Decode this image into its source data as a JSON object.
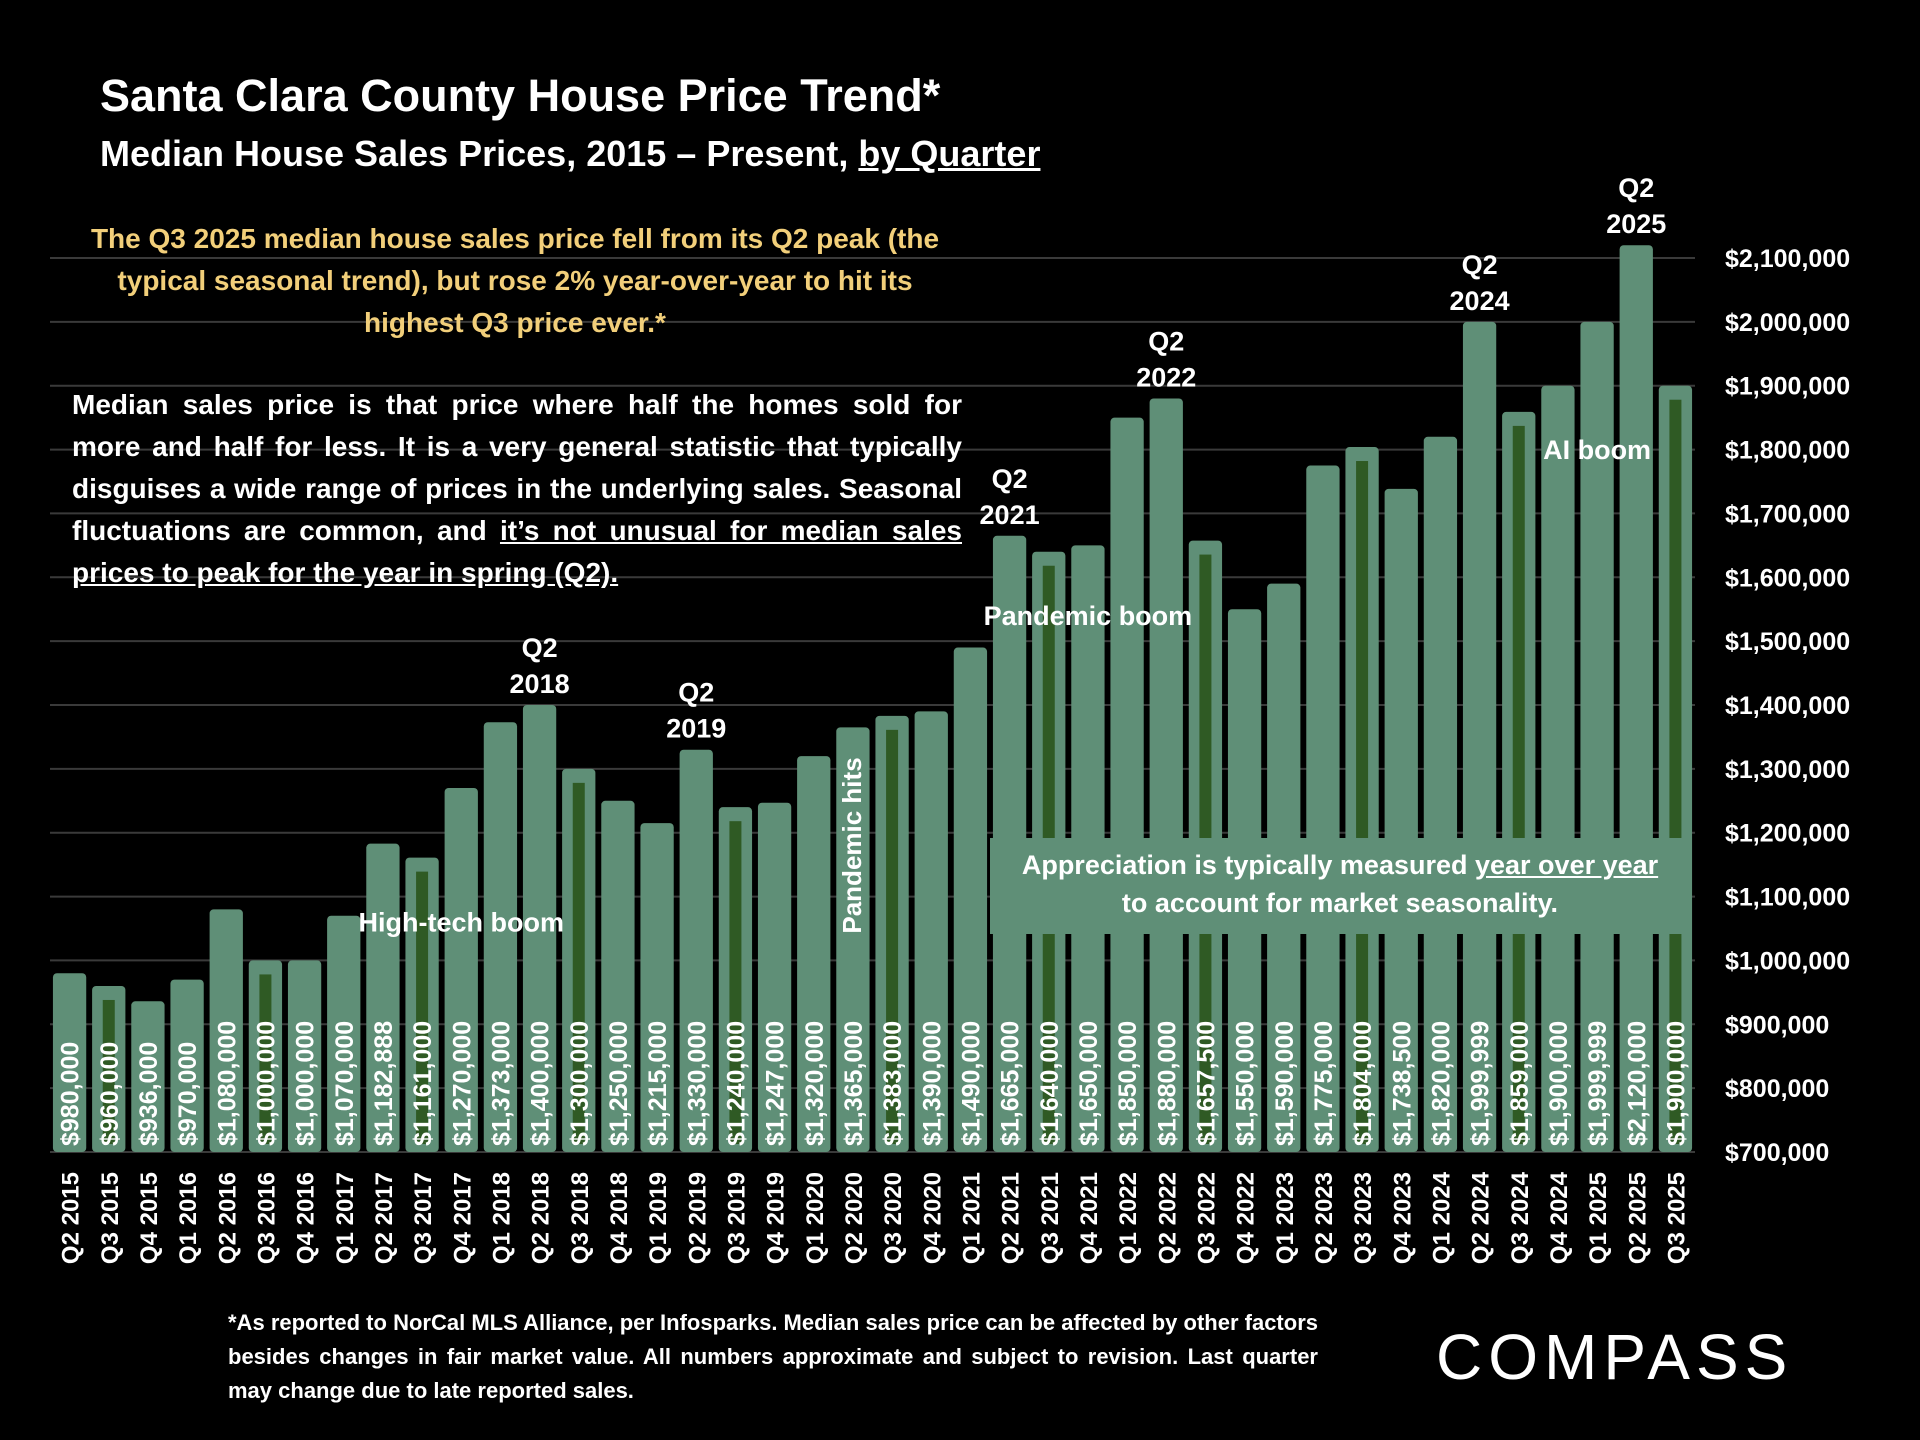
{
  "header": {
    "title": "Santa Clara County House Price Trend*",
    "subtitle_prefix": "Median House Sales Prices, 2015 – Present, ",
    "subtitle_link": "by Quarter"
  },
  "highlight": {
    "text": "The Q3 2025 median house sales price fell from its Q2 peak (the typical seasonal trend), but rose 2% year-over-year to hit its highest Q3 price ever.*"
  },
  "explanation": {
    "text": "Median sales price is that price where half the homes sold for more and half for less. It is a very general statistic that typically disguises a wide range of prices in the underlying sales. Seasonal fluctuations are common, and ",
    "underlined": "it’s not unusual for median sales prices to peak for the year in spring (Q2)."
  },
  "appreciation": {
    "prefix": "Appreciation is typically measured ",
    "underlined": "year over year",
    "suffix": "to account for market seasonality."
  },
  "footnote": "*As reported to NorCal MLS Alliance, per Infosparks. Median sales price can be affected by other factors besides changes in fair market value. All numbers approximate and subject to revision. Last quarter may change due to late reported sales.",
  "logo": "COMPASS",
  "colors": {
    "background": "#000000",
    "bar": "#5f8f77",
    "bar_inner": "#2f5a24",
    "gridline": "#3a3a3a",
    "highlight_text": "#f2cf7a",
    "text": "#ffffff"
  },
  "chart_data": {
    "type": "bar",
    "categories": [
      "Q2 2015",
      "Q3 2015",
      "Q4 2015",
      "Q1 2016",
      "Q2 2016",
      "Q3 2016",
      "Q4 2016",
      "Q1 2017",
      "Q2 2017",
      "Q3 2017",
      "Q4 2017",
      "Q1 2018",
      "Q2 2018",
      "Q3 2018",
      "Q4 2018",
      "Q1 2019",
      "Q2 2019",
      "Q3 2019",
      "Q4 2019",
      "Q1 2020",
      "Q2 2020",
      "Q3 2020",
      "Q4 2020",
      "Q1 2021",
      "Q2 2021",
      "Q3 2021",
      "Q4 2021",
      "Q1 2022",
      "Q2 2022",
      "Q3 2022",
      "Q4 2022",
      "Q1 2023",
      "Q2 2023",
      "Q3 2023",
      "Q4 2023",
      "Q1 2024",
      "Q2 2024",
      "Q3 2024",
      "Q4 2024",
      "Q1 2025",
      "Q2 2025",
      "Q3 2025"
    ],
    "values": [
      980000,
      960000,
      936000,
      970000,
      1080000,
      1000000,
      1000000,
      1070000,
      1182888,
      1161000,
      1270000,
      1373000,
      1400000,
      1300000,
      1250000,
      1215000,
      1330000,
      1240000,
      1247000,
      1320000,
      1365000,
      1383000,
      1390000,
      1490000,
      1665000,
      1640000,
      1650000,
      1850000,
      1880000,
      1657500,
      1550000,
      1590000,
      1775000,
      1804000,
      1738500,
      1820000,
      1999999,
      1859000,
      1900000,
      1999999,
      2120000,
      1900000
    ],
    "data_labels": [
      "$980,000",
      "$960,000",
      "$936,000",
      "$970,000",
      "$1,080,000",
      "$1,000,000",
      "$1,000,000",
      "$1,070,000",
      "$1,182,888",
      "$1,161,000",
      "$1,270,000",
      "$1,373,000",
      "$1,400,000",
      "$1,300,000",
      "$1,250,000",
      "$1,215,000",
      "$1,330,000",
      "$1,240,000",
      "$1,247,000",
      "$1,320,000",
      "$1,365,000",
      "$1,383,000",
      "$1,390,000",
      "$1,490,000",
      "$1,665,000",
      "$1,640,000",
      "$1,650,000",
      "$1,850,000",
      "$1,880,000",
      "$1,657,500",
      "$1,550,000",
      "$1,590,000",
      "$1,775,000",
      "$1,804,000",
      "$1,738,500",
      "$1,820,000",
      "$1,999,999",
      "$1,859,000",
      "$1,900,000",
      "$1,999,999",
      "$2,120,000",
      "$1,900,000"
    ],
    "q3_indices": [
      1,
      5,
      9,
      13,
      17,
      21,
      25,
      29,
      33,
      37,
      41
    ],
    "ylim": [
      700000,
      2100000
    ],
    "y_ticks": [
      700000,
      800000,
      900000,
      1000000,
      1100000,
      1200000,
      1300000,
      1400000,
      1500000,
      1600000,
      1700000,
      1800000,
      1900000,
      2000000,
      2100000
    ],
    "y_tick_labels": [
      "$700,000",
      "$800,000",
      "$900,000",
      "$1,000,000",
      "$1,100,000",
      "$1,200,000",
      "$1,300,000",
      "$1,400,000",
      "$1,500,000",
      "$1,600,000",
      "$1,700,000",
      "$1,800,000",
      "$1,900,000",
      "$2,000,000",
      "$2,100,000"
    ],
    "y_axis_side": "right",
    "grid": true,
    "xlabel": "",
    "ylabel": "",
    "peak_labels": [
      {
        "index": 12,
        "line1": "Q2",
        "line2": "2018"
      },
      {
        "index": 16,
        "line1": "Q2",
        "line2": "2019"
      },
      {
        "index": 24,
        "line1": "Q2",
        "line2": "2021"
      },
      {
        "index": 28,
        "line1": "Q2",
        "line2": "2022"
      },
      {
        "index": 36,
        "line1": "Q2",
        "line2": "2024"
      },
      {
        "index": 40,
        "line1": "Q2",
        "line2": "2025"
      }
    ],
    "annotations": [
      {
        "text": "High-tech boom",
        "index": 10,
        "value": 1045000,
        "rotated": false
      },
      {
        "text": "Pandemic hits",
        "index": 20,
        "value": 1180000,
        "rotated": true
      },
      {
        "text": "Pandemic boom",
        "index": 26,
        "value": 1525000,
        "rotated": false
      },
      {
        "text": "AI boom",
        "index": 39,
        "value": 1785000,
        "rotated": false
      }
    ]
  }
}
